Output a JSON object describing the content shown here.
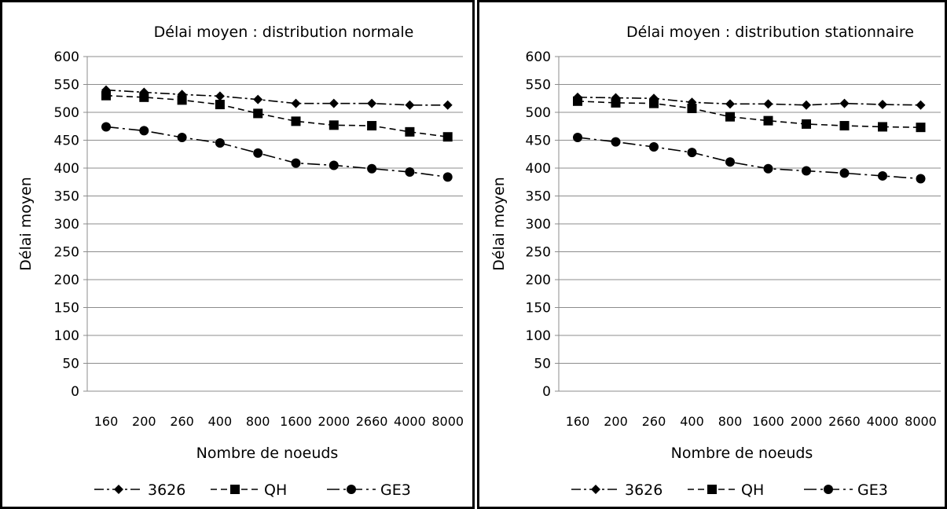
{
  "chart_data": [
    {
      "type": "line",
      "title": "Délai moyen : distribution normale",
      "xlabel": "Nombre de noeuds",
      "ylabel": "Délai moyen",
      "categories": [
        "160",
        "200",
        "260",
        "400",
        "800",
        "1600",
        "2000",
        "2660",
        "4000",
        "8000"
      ],
      "ylim": [
        0,
        600
      ],
      "yticks": [
        0,
        50,
        100,
        150,
        200,
        250,
        300,
        350,
        400,
        450,
        500,
        550,
        600
      ],
      "grid": true,
      "legend": "bottom",
      "series": [
        {
          "name": "3626",
          "marker": "diamond",
          "dash": "dash-dot",
          "values": [
            540,
            536,
            532,
            529,
            523,
            516,
            516,
            516,
            513,
            513
          ]
        },
        {
          "name": "QH",
          "marker": "square",
          "dash": "dash",
          "values": [
            530,
            527,
            522,
            514,
            498,
            484,
            477,
            476,
            465,
            456
          ]
        },
        {
          "name": "GE3",
          "marker": "circle",
          "dash": "long-dash-dot",
          "values": [
            474,
            467,
            455,
            445,
            427,
            409,
            405,
            399,
            393,
            384
          ]
        }
      ]
    },
    {
      "type": "line",
      "title": "Délai moyen : distribution stationnaire",
      "xlabel": "Nombre de noeuds",
      "ylabel": "Délai moyen",
      "categories": [
        "160",
        "200",
        "260",
        "400",
        "800",
        "1600",
        "2000",
        "2660",
        "4000",
        "8000"
      ],
      "ylim": [
        0,
        600
      ],
      "yticks": [
        0,
        50,
        100,
        150,
        200,
        250,
        300,
        350,
        400,
        450,
        500,
        550,
        600
      ],
      "grid": true,
      "legend": "bottom",
      "series": [
        {
          "name": "3626",
          "marker": "diamond",
          "dash": "dash-dot",
          "values": [
            527,
            526,
            525,
            518,
            515,
            515,
            513,
            516,
            514,
            513
          ]
        },
        {
          "name": "QH",
          "marker": "square",
          "dash": "dash",
          "values": [
            520,
            517,
            516,
            507,
            492,
            485,
            479,
            476,
            474,
            473
          ]
        },
        {
          "name": "GE3",
          "marker": "circle",
          "dash": "long-dash-dot",
          "values": [
            455,
            447,
            438,
            428,
            411,
            399,
            395,
            391,
            386,
            381
          ]
        }
      ]
    }
  ]
}
